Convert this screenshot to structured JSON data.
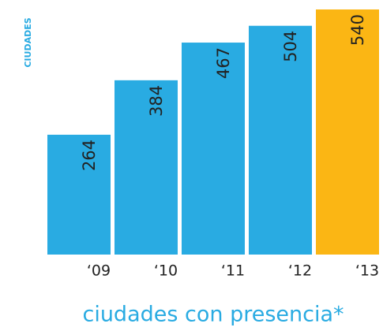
{
  "chart_data": {
    "type": "bar",
    "title": "ciudades con presencia*",
    "y_label": "CIUDADES",
    "categories": [
      "‘09",
      "‘10",
      "‘11",
      "‘12",
      "‘13"
    ],
    "values": [
      264,
      384,
      467,
      504,
      540
    ],
    "colors": [
      "#29abe2",
      "#29abe2",
      "#29abe2",
      "#29abe2",
      "#fbb614"
    ]
  }
}
